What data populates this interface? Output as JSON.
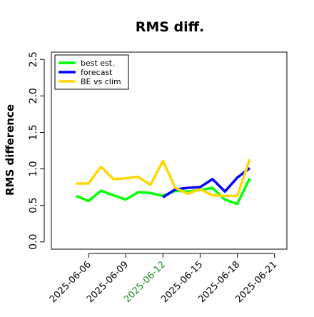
{
  "chart_data": {
    "type": "line",
    "title": "RMS diff.",
    "xlabel": "",
    "ylabel": "RMS difference",
    "ylim": [
      -0.1,
      2.6
    ],
    "yticks": [
      0.0,
      0.5,
      1.0,
      1.5,
      2.0,
      2.5
    ],
    "ytick_labels": [
      "0.0",
      "0.5",
      "1.0",
      "1.5",
      "2.0",
      "2.5"
    ],
    "xlim": [
      "2025-06-03",
      "2025-06-22"
    ],
    "xticks": [
      "2025-06-06",
      "2025-06-09",
      "2025-06-12",
      "2025-06-15",
      "2025-06-18",
      "2025-06-21"
    ],
    "xtick_labels": [
      "2025-06-06",
      "2025-06-09",
      "2025-06-12",
      "2025-06-15",
      "2025-06-18",
      "2025-06-21"
    ],
    "xtick_colors": [
      "#000000",
      "#000000",
      "#228b22",
      "#000000",
      "#000000",
      "#000000"
    ],
    "grid": false,
    "legend_position": "top-left",
    "series": [
      {
        "name": "best est.",
        "color": "#00ff00",
        "x": [
          "2025-06-05",
          "2025-06-06",
          "2025-06-07",
          "2025-06-08",
          "2025-06-09",
          "2025-06-10",
          "2025-06-11",
          "2025-06-12",
          "2025-06-13",
          "2025-06-14",
          "2025-06-15",
          "2025-06-16",
          "2025-06-17",
          "2025-06-18",
          "2025-06-19"
        ],
        "y": [
          0.63,
          0.56,
          0.7,
          0.64,
          0.58,
          0.68,
          0.67,
          0.63,
          0.7,
          0.69,
          0.71,
          0.74,
          0.58,
          0.52,
          0.87
        ]
      },
      {
        "name": "forecast",
        "color": "#0000ff",
        "x": [
          "2025-06-12",
          "2025-06-13",
          "2025-06-14",
          "2025-06-15",
          "2025-06-16",
          "2025-06-17",
          "2025-06-18",
          "2025-06-19"
        ],
        "y": [
          0.61,
          0.72,
          0.74,
          0.75,
          0.86,
          0.69,
          0.88,
          1.01
        ]
      },
      {
        "name": "BE vs clim",
        "color": "#ffd700",
        "x": [
          "2025-06-05",
          "2025-06-06",
          "2025-06-07",
          "2025-06-08",
          "2025-06-09",
          "2025-06-10",
          "2025-06-11",
          "2025-06-12",
          "2025-06-13",
          "2025-06-14",
          "2025-06-15",
          "2025-06-16",
          "2025-06-17",
          "2025-06-18",
          "2025-06-19"
        ],
        "y": [
          0.8,
          0.8,
          1.03,
          0.86,
          0.87,
          0.89,
          0.78,
          1.11,
          0.74,
          0.66,
          0.72,
          0.64,
          0.63,
          0.63,
          1.13
        ]
      }
    ]
  }
}
